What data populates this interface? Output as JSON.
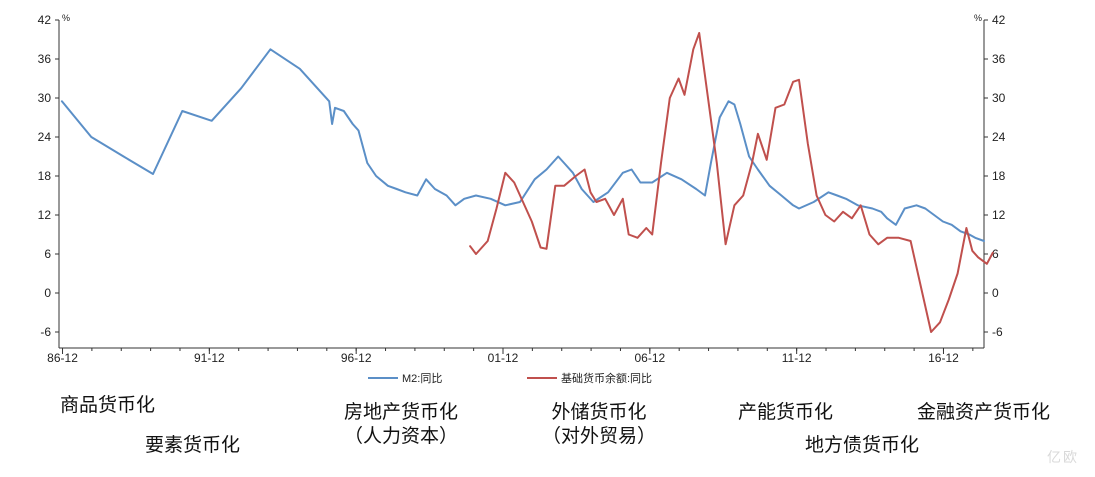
{
  "chart_data": {
    "type": "line",
    "unit_left": "%",
    "unit_right": "%",
    "ylim": [
      -8,
      42
    ],
    "yticks": [
      42,
      36,
      30,
      24,
      18,
      12,
      6,
      0,
      -6
    ],
    "xlim": [
      1986.8,
      2018.3
    ],
    "xticks": [
      {
        "label": "86-12",
        "x": 1986.92
      },
      {
        "label": "91-12",
        "x": 1991.92
      },
      {
        "label": "96-12",
        "x": 1996.92
      },
      {
        "label": "01-12",
        "x": 2001.92
      },
      {
        "label": "06-12",
        "x": 2006.92
      },
      {
        "label": "11-12",
        "x": 2011.92
      },
      {
        "label": "16-12",
        "x": 2016.92
      }
    ],
    "series": [
      {
        "name": "M2:同比",
        "color": "#5b8fc7",
        "points": [
          [
            1986.9,
            29.5
          ],
          [
            1987.9,
            24.0
          ],
          [
            1989.0,
            21.0
          ],
          [
            1990.0,
            18.3
          ],
          [
            1991.0,
            28.0
          ],
          [
            1992.0,
            26.5
          ],
          [
            1993.0,
            31.5
          ],
          [
            1994.0,
            37.5
          ],
          [
            1995.0,
            34.5
          ],
          [
            1996.0,
            29.5
          ],
          [
            1996.1,
            26.0
          ],
          [
            1996.2,
            28.5
          ],
          [
            1996.5,
            28.0
          ],
          [
            1996.8,
            26.0
          ],
          [
            1997.0,
            25.0
          ],
          [
            1997.3,
            20.0
          ],
          [
            1997.6,
            18.0
          ],
          [
            1998.0,
            16.5
          ],
          [
            1998.3,
            16.0
          ],
          [
            1998.6,
            15.5
          ],
          [
            1999.0,
            15.0
          ],
          [
            1999.3,
            17.5
          ],
          [
            1999.6,
            16.0
          ],
          [
            2000.0,
            15.0
          ],
          [
            2000.3,
            13.5
          ],
          [
            2000.6,
            14.5
          ],
          [
            2001.0,
            15.0
          ],
          [
            2001.5,
            14.5
          ],
          [
            2002.0,
            13.5
          ],
          [
            2002.5,
            14.0
          ],
          [
            2003.0,
            17.5
          ],
          [
            2003.4,
            19.0
          ],
          [
            2003.8,
            21.0
          ],
          [
            2004.0,
            20.0
          ],
          [
            2004.3,
            18.5
          ],
          [
            2004.6,
            16.0
          ],
          [
            2005.0,
            14.0
          ],
          [
            2005.5,
            15.5
          ],
          [
            2006.0,
            18.5
          ],
          [
            2006.3,
            19.0
          ],
          [
            2006.6,
            17.0
          ],
          [
            2007.0,
            17.0
          ],
          [
            2007.5,
            18.5
          ],
          [
            2008.0,
            17.5
          ],
          [
            2008.5,
            16.0
          ],
          [
            2008.8,
            15.0
          ],
          [
            2009.0,
            20.0
          ],
          [
            2009.3,
            27.0
          ],
          [
            2009.6,
            29.5
          ],
          [
            2009.8,
            29.0
          ],
          [
            2010.0,
            26.0
          ],
          [
            2010.3,
            21.0
          ],
          [
            2010.6,
            19.0
          ],
          [
            2011.0,
            16.5
          ],
          [
            2011.4,
            15.0
          ],
          [
            2011.8,
            13.5
          ],
          [
            2012.0,
            13.0
          ],
          [
            2012.5,
            14.0
          ],
          [
            2013.0,
            15.5
          ],
          [
            2013.3,
            15.0
          ],
          [
            2013.6,
            14.5
          ],
          [
            2014.0,
            13.5
          ],
          [
            2014.5,
            13.0
          ],
          [
            2014.8,
            12.5
          ],
          [
            2015.0,
            11.5
          ],
          [
            2015.3,
            10.5
          ],
          [
            2015.6,
            13.0
          ],
          [
            2016.0,
            13.5
          ],
          [
            2016.3,
            13.0
          ],
          [
            2016.6,
            12.0
          ],
          [
            2016.9,
            11.0
          ],
          [
            2017.2,
            10.5
          ],
          [
            2017.5,
            9.5
          ],
          [
            2017.8,
            9.0
          ],
          [
            2018.0,
            8.5
          ],
          [
            2018.3,
            8.0
          ]
        ]
      },
      {
        "name": "基础货币余额:同比",
        "color": "#c0504d",
        "points": [
          [
            2000.8,
            7.2
          ],
          [
            2001.0,
            6.0
          ],
          [
            2001.4,
            8.0
          ],
          [
            2001.7,
            13.0
          ],
          [
            2002.0,
            18.5
          ],
          [
            2002.3,
            17.0
          ],
          [
            2002.6,
            14.0
          ],
          [
            2002.9,
            11.0
          ],
          [
            2003.2,
            7.0
          ],
          [
            2003.4,
            6.8
          ],
          [
            2003.7,
            16.5
          ],
          [
            2004.0,
            16.5
          ],
          [
            2004.4,
            18.0
          ],
          [
            2004.7,
            19.0
          ],
          [
            2004.9,
            15.5
          ],
          [
            2005.1,
            14.0
          ],
          [
            2005.4,
            14.5
          ],
          [
            2005.7,
            12.0
          ],
          [
            2006.0,
            14.5
          ],
          [
            2006.2,
            9.0
          ],
          [
            2006.5,
            8.5
          ],
          [
            2006.8,
            10.0
          ],
          [
            2007.0,
            9.0
          ],
          [
            2007.3,
            20.0
          ],
          [
            2007.6,
            30.0
          ],
          [
            2007.9,
            33.0
          ],
          [
            2008.1,
            30.5
          ],
          [
            2008.4,
            37.5
          ],
          [
            2008.6,
            40.0
          ],
          [
            2008.9,
            30.0
          ],
          [
            2009.2,
            20.0
          ],
          [
            2009.5,
            7.5
          ],
          [
            2009.8,
            13.5
          ],
          [
            2010.1,
            15.0
          ],
          [
            2010.4,
            20.0
          ],
          [
            2010.6,
            24.5
          ],
          [
            2010.9,
            20.5
          ],
          [
            2011.2,
            28.5
          ],
          [
            2011.5,
            29.0
          ],
          [
            2011.8,
            32.5
          ],
          [
            2012.0,
            32.8
          ],
          [
            2012.3,
            23.0
          ],
          [
            2012.6,
            15.0
          ],
          [
            2012.9,
            12.0
          ],
          [
            2013.2,
            11.0
          ],
          [
            2013.5,
            12.5
          ],
          [
            2013.8,
            11.5
          ],
          [
            2014.1,
            13.5
          ],
          [
            2014.4,
            9.0
          ],
          [
            2014.7,
            7.5
          ],
          [
            2015.0,
            8.5
          ],
          [
            2015.4,
            8.5
          ],
          [
            2015.8,
            8.0
          ],
          [
            2016.2,
            0.0
          ],
          [
            2016.5,
            -6.0
          ],
          [
            2016.8,
            -4.5
          ],
          [
            2017.1,
            -1.0
          ],
          [
            2017.4,
            3.0
          ],
          [
            2017.7,
            10.0
          ],
          [
            2017.9,
            6.5
          ],
          [
            2018.1,
            5.5
          ],
          [
            2018.4,
            4.5
          ],
          [
            2018.6,
            6.2
          ]
        ]
      }
    ],
    "legend_placement": "bottom-center"
  },
  "annotations": [
    {
      "lines": [
        "商品货币化"
      ]
    },
    {
      "lines": [
        "要素货币化"
      ]
    },
    {
      "lines": [
        "房地产货币化",
        "（人力资本）"
      ]
    },
    {
      "lines": [
        "外储货币化",
        "（对外贸易）"
      ]
    },
    {
      "lines": [
        "产能货币化"
      ]
    },
    {
      "lines": [
        "地方债货币化"
      ]
    },
    {
      "lines": [
        "金融资产货币化"
      ]
    }
  ],
  "watermark": "亿欧"
}
